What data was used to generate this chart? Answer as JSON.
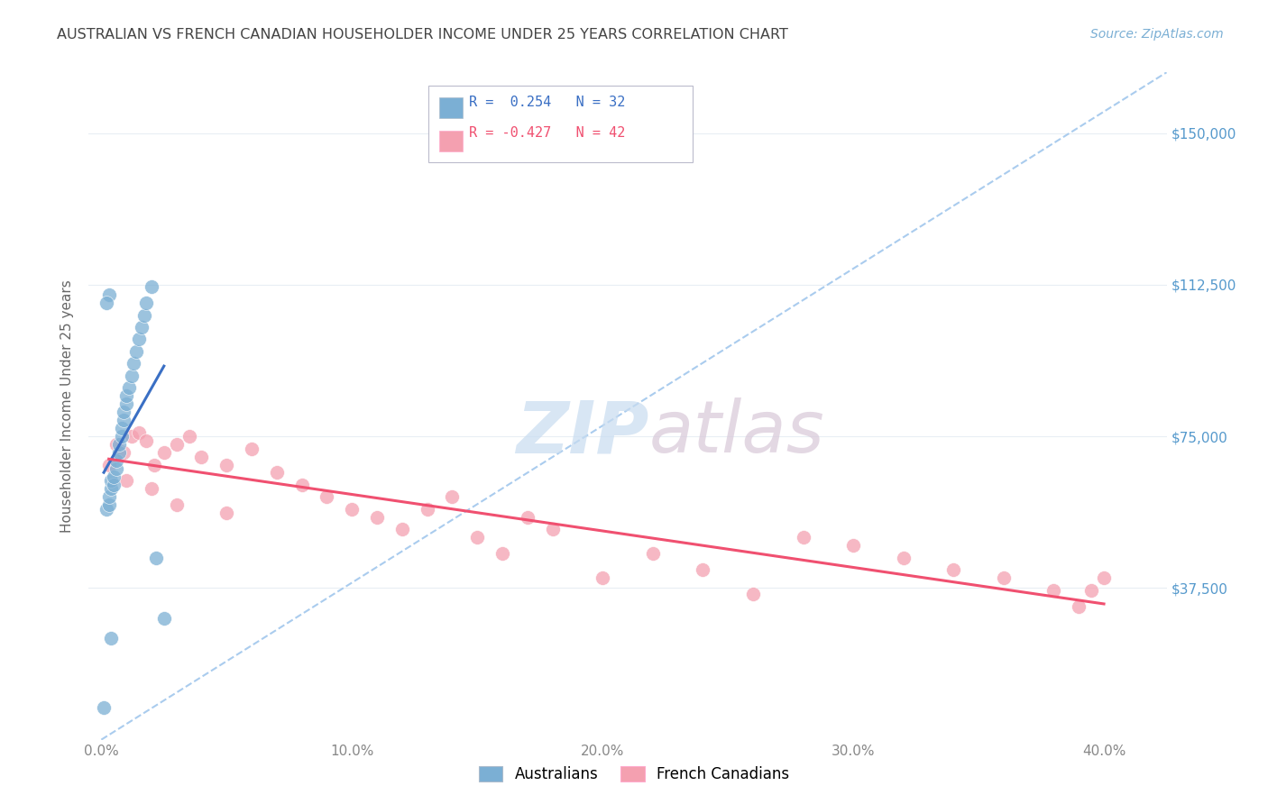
{
  "title": "AUSTRALIAN VS FRENCH CANADIAN HOUSEHOLDER INCOME UNDER 25 YEARS CORRELATION CHART",
  "source": "Source: ZipAtlas.com",
  "ylabel": "Householder Income Under 25 years",
  "xlabel_ticks": [
    "0.0%",
    "10.0%",
    "20.0%",
    "30.0%",
    "40.0%"
  ],
  "xlabel_vals": [
    0.0,
    0.1,
    0.2,
    0.3,
    0.4
  ],
  "ytick_labels": [
    "$37,500",
    "$75,000",
    "$112,500",
    "$150,000"
  ],
  "ytick_vals": [
    37500,
    75000,
    112500,
    150000
  ],
  "ylim": [
    0,
    165000
  ],
  "xlim": [
    -0.005,
    0.425
  ],
  "legend_aus": "Australians",
  "legend_frc": "French Canadians",
  "R_aus": "0.254",
  "N_aus": "32",
  "R_frc": "-0.427",
  "N_frc": "42",
  "color_aus": "#7BAFD4",
  "color_frc": "#F4A0B0",
  "trendline_aus": "#3A6FC4",
  "trendline_frc": "#F05070",
  "dashed_line_color": "#AACCEE",
  "title_color": "#444444",
  "source_color": "#7BAFD4",
  "ytick_color": "#5599CC",
  "grid_color": "#E8EEF4",
  "background_color": "#FFFFFF",
  "watermark_zip": "ZIP",
  "watermark_atlas": "atlas",
  "aus_x": [
    0.001,
    0.002,
    0.003,
    0.003,
    0.004,
    0.004,
    0.005,
    0.005,
    0.006,
    0.006,
    0.007,
    0.007,
    0.008,
    0.008,
    0.009,
    0.009,
    0.01,
    0.01,
    0.011,
    0.012,
    0.013,
    0.014,
    0.015,
    0.016,
    0.017,
    0.018,
    0.02,
    0.022,
    0.025,
    0.004,
    0.003,
    0.002
  ],
  "aus_y": [
    8000,
    57000,
    58000,
    60000,
    62000,
    64000,
    63000,
    65000,
    67000,
    69000,
    71000,
    73000,
    75000,
    77000,
    79000,
    81000,
    83000,
    85000,
    87000,
    90000,
    93000,
    96000,
    99000,
    102000,
    105000,
    108000,
    112000,
    45000,
    30000,
    25000,
    110000,
    108000
  ],
  "frc_x": [
    0.003,
    0.006,
    0.009,
    0.012,
    0.015,
    0.018,
    0.021,
    0.025,
    0.03,
    0.035,
    0.04,
    0.05,
    0.06,
    0.07,
    0.08,
    0.09,
    0.1,
    0.11,
    0.12,
    0.13,
    0.14,
    0.15,
    0.16,
    0.17,
    0.18,
    0.2,
    0.22,
    0.24,
    0.26,
    0.28,
    0.3,
    0.32,
    0.34,
    0.36,
    0.38,
    0.39,
    0.395,
    0.4,
    0.01,
    0.02,
    0.03,
    0.05
  ],
  "frc_y": [
    68000,
    73000,
    71000,
    75000,
    76000,
    74000,
    68000,
    71000,
    73000,
    75000,
    70000,
    68000,
    72000,
    66000,
    63000,
    60000,
    57000,
    55000,
    52000,
    57000,
    60000,
    50000,
    46000,
    55000,
    52000,
    40000,
    46000,
    42000,
    36000,
    50000,
    48000,
    45000,
    42000,
    40000,
    37000,
    33000,
    37000,
    40000,
    64000,
    62000,
    58000,
    56000
  ]
}
